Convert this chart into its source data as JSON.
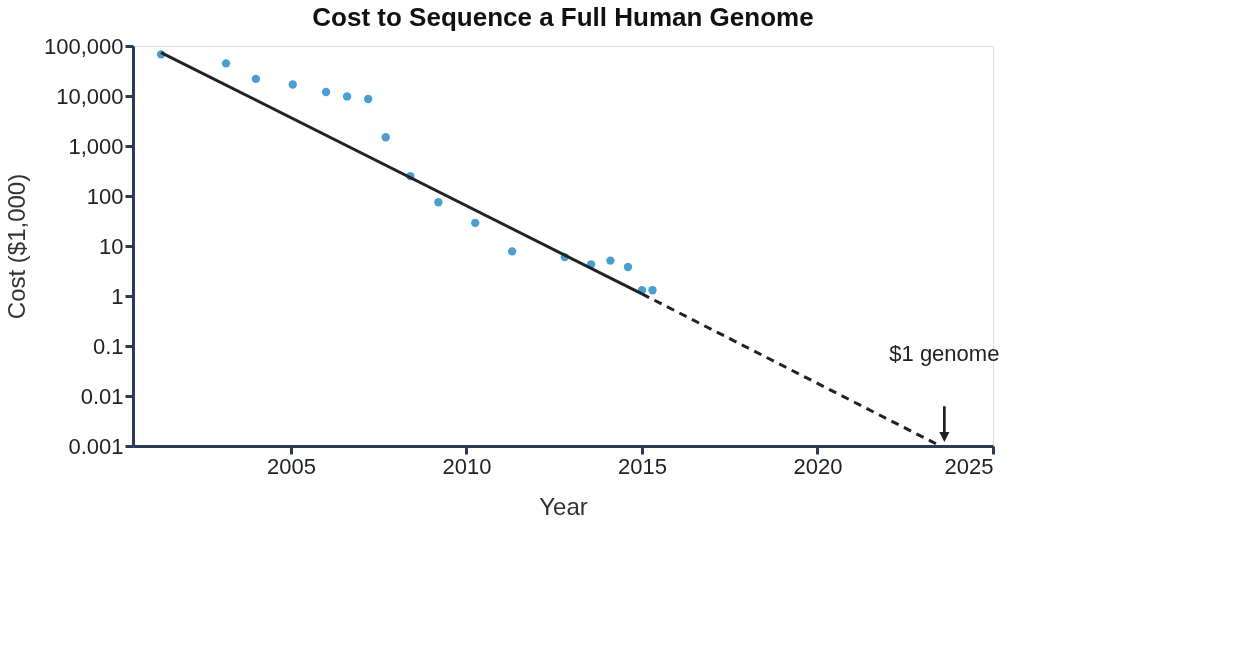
{
  "chart_data": {
    "type": "scatter",
    "title": "Cost to Sequence a Full Human Genome",
    "xlabel": "Year",
    "ylabel": "Cost ($1,000)",
    "log": "y",
    "grid": false,
    "xlim": [
      2000.5,
      2025
    ],
    "xticks": [
      2005,
      2010,
      2015,
      2020,
      2025
    ],
    "ylim": [
      0.001,
      100000
    ],
    "yticks": [
      {
        "value": 100000,
        "label": "100,000"
      },
      {
        "value": 10000,
        "label": "10,000"
      },
      {
        "value": 1000,
        "label": "1,000"
      },
      100,
      10,
      1,
      0.1,
      0.01,
      0.001
    ],
    "series": [
      {
        "color": "#4a9fd0",
        "marker": "circle",
        "x": [
          2001.3,
          2003.15,
          2004.0,
          2005.05,
          2006.0,
          2006.6,
          2007.2,
          2007.7,
          2008.4,
          2009.2,
          2010.25,
          2011.3,
          2012.8,
          2013.55,
          2014.1,
          2014.6,
          2015.0,
          2015.3
        ],
        "values": [
          68000,
          45000,
          22000,
          17000,
          12000,
          9800,
          8700,
          1500,
          250,
          75,
          29,
          7.8,
          6,
          4.3,
          5.1,
          3.8,
          1.3,
          1.3
        ]
      },
      {
        "type": "line",
        "color": "#222222",
        "line_style": "solid",
        "x": [
          2001.3,
          2015.0
        ],
        "values": [
          74000,
          1.1
        ]
      },
      {
        "type": "line",
        "color": "#222222",
        "line_style": "dashed",
        "x": [
          2015.0,
          2023.5
        ],
        "values": [
          1.1,
          0.001
        ]
      }
    ],
    "annotations": [
      "$1 genome"
    ]
  }
}
